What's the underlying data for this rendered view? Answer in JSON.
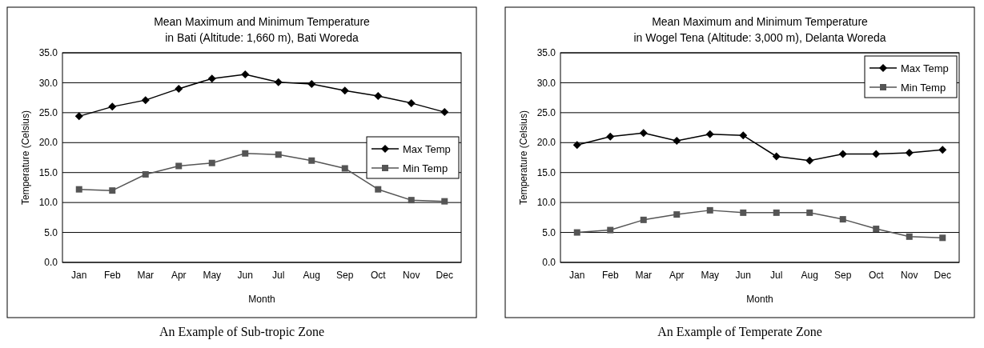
{
  "chart_data": [
    {
      "type": "line",
      "title": "Mean Maximum and Minimum Temperature\nin Bati  (Altitude: 1,660 m), Bati Woreda",
      "xlabel": "Month",
      "ylabel": "Temperature (Celsius)",
      "categories": [
        "Jan",
        "Feb",
        "Mar",
        "Apr",
        "May",
        "Jun",
        "Jul",
        "Aug",
        "Sep",
        "Oct",
        "Nov",
        "Dec"
      ],
      "ylim": [
        0,
        35
      ],
      "yticks": [
        {
          "value": 0,
          "label": "0.0"
        },
        {
          "value": 5,
          "label": "5.0"
        },
        {
          "value": 10,
          "label": "10.0"
        },
        {
          "value": 15,
          "label": "15.0"
        },
        {
          "value": 20,
          "label": "20.0"
        },
        {
          "value": 25,
          "label": "25.0"
        },
        {
          "value": 30,
          "label": "30.0"
        },
        {
          "value": 35,
          "label": "35.0"
        }
      ],
      "grid": "y",
      "legend": "right",
      "annotations": [
        "An Example of Sub-tropic Zone"
      ],
      "series": [
        {
          "name": "Max Temp",
          "color": "#000000",
          "marker": "diamond",
          "values": [
            24.4,
            26.0,
            27.1,
            29.0,
            30.7,
            31.4,
            30.1,
            29.8,
            28.7,
            27.8,
            26.6,
            25.1
          ]
        },
        {
          "name": "Min Temp",
          "color": "#555555",
          "marker": "square",
          "values": [
            12.2,
            12.0,
            14.7,
            16.1,
            16.6,
            18.2,
            18.0,
            17.0,
            15.7,
            12.2,
            10.4,
            10.2
          ]
        }
      ]
    },
    {
      "type": "line",
      "title": "Mean Maximum and Minimum Temperature\nin Wogel Tena  (Altitude: 3,000 m), Delanta Woreda",
      "xlabel": "Month",
      "ylabel": "Temperature (Celsius)",
      "categories": [
        "Jan",
        "Feb",
        "Mar",
        "Apr",
        "May",
        "Jun",
        "Jul",
        "Aug",
        "Sep",
        "Oct",
        "Nov",
        "Dec"
      ],
      "ylim": [
        0,
        35
      ],
      "yticks": [
        {
          "value": 0,
          "label": "0.0"
        },
        {
          "value": 5,
          "label": "5.0"
        },
        {
          "value": 10,
          "label": "10.0"
        },
        {
          "value": 15,
          "label": "15.0"
        },
        {
          "value": 20,
          "label": "20.0"
        },
        {
          "value": 25,
          "label": "25.0"
        },
        {
          "value": 30,
          "label": "30.0"
        },
        {
          "value": 35,
          "label": "35.0"
        }
      ],
      "grid": "y",
      "legend": "top right",
      "annotations": [
        "An Example of Temperate Zone"
      ],
      "series": [
        {
          "name": "Max Temp",
          "color": "#000000",
          "marker": "diamond",
          "values": [
            19.6,
            21.0,
            21.6,
            20.3,
            21.4,
            21.2,
            17.7,
            17.0,
            18.1,
            18.1,
            18.3,
            18.8
          ]
        },
        {
          "name": "Min Temp",
          "color": "#555555",
          "marker": "square",
          "values": [
            5.0,
            5.4,
            7.1,
            8.0,
            8.7,
            8.3,
            8.3,
            8.3,
            7.2,
            5.6,
            4.3,
            4.1
          ]
        }
      ]
    }
  ]
}
